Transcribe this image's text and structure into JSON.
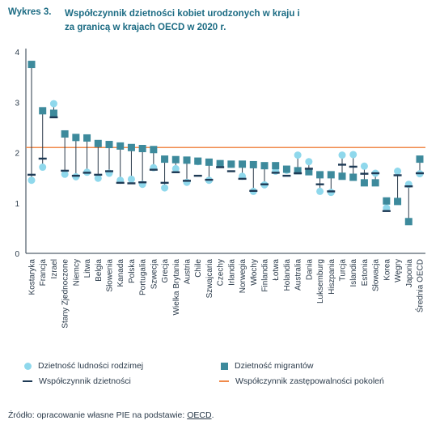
{
  "header": {
    "label": "Wykres 3.",
    "title": "Współczynnik dzietności kobiet urodzonych w kraju i za granicą w krajach OECD w 2020 r."
  },
  "chart_data": {
    "type": "dot-range",
    "ylim": [
      0,
      4
    ],
    "yticks": [
      "0",
      "1",
      "2",
      "3",
      "4"
    ],
    "replacement_level": 2.1,
    "categories": [
      "Kostaryka",
      "Francja",
      "Izrael",
      "Stany Zjednoczone",
      "Niemcy",
      "Litwa",
      "Belgia",
      "Słowenia",
      "Kanada",
      "Polska",
      "Portugalia",
      "Szwecja",
      "Grecja",
      "Wielka Brytania",
      "Austria",
      "Chile",
      "Szwajcaria",
      "Czechy",
      "Irlandia",
      "Norwegia",
      "Włochy",
      "Finlandia",
      "Łotwa",
      "Holandia",
      "Australia",
      "Dania",
      "Luksemburg",
      "Hiszpania",
      "Turcja",
      "Islandia",
      "Estonia",
      "Słowacja",
      "Korea",
      "Węgry",
      "Japonia",
      "Średnia OECD"
    ],
    "series": [
      {
        "name": "Dzietność ludności rodzimej",
        "values": [
          1.45,
          1.71,
          2.97,
          1.57,
          1.52,
          1.61,
          1.49,
          1.59,
          1.45,
          1.47,
          1.37,
          1.7,
          1.3,
          1.68,
          1.41,
          1.82,
          1.45,
          1.78,
          1.77,
          1.53,
          1.23,
          1.36,
          1.63,
          1.65,
          1.95,
          1.82,
          1.23,
          1.21,
          1.95,
          1.96,
          1.73,
          1.59,
          0.9,
          1.63,
          1.37,
          1.58
        ]
      },
      {
        "name": "Dzietność migrantów",
        "values": [
          3.75,
          2.83,
          2.78,
          2.37,
          2.3,
          2.29,
          2.18,
          2.16,
          2.13,
          2.1,
          2.08,
          2.06,
          1.87,
          1.86,
          1.85,
          1.83,
          1.81,
          1.78,
          1.77,
          1.77,
          1.76,
          1.74,
          1.74,
          1.67,
          1.64,
          1.62,
          1.56,
          1.56,
          1.53,
          1.51,
          1.4,
          1.4,
          1.04,
          1.03,
          0.63,
          1.87
        ]
      },
      {
        "name": "Współczynnik dzietności",
        "values": [
          1.56,
          1.88,
          2.7,
          1.64,
          1.54,
          1.6,
          1.56,
          1.63,
          1.4,
          1.39,
          1.41,
          1.66,
          1.4,
          1.61,
          1.44,
          1.54,
          1.46,
          1.71,
          1.63,
          1.48,
          1.24,
          1.37,
          1.6,
          1.54,
          1.59,
          1.68,
          1.37,
          1.23,
          1.76,
          1.72,
          1.58,
          1.59,
          0.84,
          1.55,
          1.33,
          1.59
        ]
      }
    ],
    "legend": [
      {
        "label": "Dzietność ludności rodzimej",
        "color": "#8fd8ec",
        "marker": "circle"
      },
      {
        "label": "Dzietność migrantów",
        "color": "#3d8a9c",
        "marker": "square"
      },
      {
        "label": "Współczynnik dzietności",
        "color": "#1e3a55",
        "marker": "dash"
      },
      {
        "label": "Współczynnik zastępowalności pokoleń",
        "color": "#f08a4b",
        "marker": "line"
      }
    ]
  },
  "source": {
    "prefix": "Źródło: opracowanie własne PIE na podstawie: ",
    "link": "OECD",
    "suffix": "."
  }
}
